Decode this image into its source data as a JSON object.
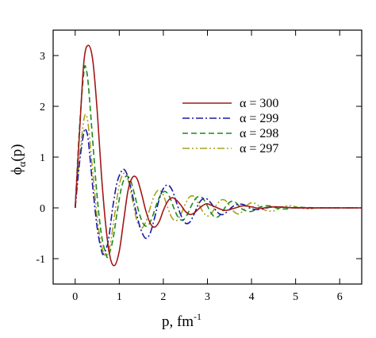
{
  "chart_data": {
    "type": "line",
    "xlabel": "p, fm",
    "xlabel_sup": "-1",
    "ylabel": "ϕ",
    "ylabel_sub": "α",
    "ylabel_arg": "(p)",
    "xlim": [
      -0.5,
      6.5
    ],
    "ylim": [
      -1.5,
      3.5
    ],
    "xticks": [
      0,
      1,
      2,
      3,
      4,
      5,
      6
    ],
    "yticks": [
      -1,
      0,
      1,
      2,
      3
    ],
    "grid": false,
    "legend_position": "center-right",
    "series": [
      {
        "name": "α = 300",
        "color": "#a11818",
        "dash": "solid",
        "points": [
          [
            0,
            0
          ],
          [
            0.1,
            1.5
          ],
          [
            0.2,
            2.9
          ],
          [
            0.3,
            3.2
          ],
          [
            0.4,
            2.9
          ],
          [
            0.5,
            1.9
          ],
          [
            0.6,
            0.6
          ],
          [
            0.7,
            -0.4
          ],
          [
            0.8,
            -1.0
          ],
          [
            0.9,
            -1.13
          ],
          [
            1.0,
            -0.85
          ],
          [
            1.1,
            -0.25
          ],
          [
            1.2,
            0.35
          ],
          [
            1.3,
            0.6
          ],
          [
            1.4,
            0.58
          ],
          [
            1.5,
            0.3
          ],
          [
            1.6,
            -0.05
          ],
          [
            1.7,
            -0.3
          ],
          [
            1.8,
            -0.38
          ],
          [
            1.9,
            -0.28
          ],
          [
            2.0,
            -0.05
          ],
          [
            2.1,
            0.13
          ],
          [
            2.2,
            0.2
          ],
          [
            2.3,
            0.15
          ],
          [
            2.4,
            0.05
          ],
          [
            2.5,
            -0.07
          ],
          [
            2.6,
            -0.13
          ],
          [
            2.7,
            -0.1
          ],
          [
            2.8,
            -0.02
          ],
          [
            2.9,
            0.05
          ],
          [
            3.0,
            0.08
          ],
          [
            3.2,
            0.01
          ],
          [
            3.4,
            -0.05
          ],
          [
            3.6,
            -0.01
          ],
          [
            3.8,
            0.04
          ],
          [
            4.0,
            0.02
          ],
          [
            4.2,
            -0.01
          ],
          [
            4.5,
            0.02
          ],
          [
            5.0,
            0.0
          ],
          [
            5.5,
            0.0
          ],
          [
            6.0,
            0.0
          ],
          [
            6.5,
            0.0
          ]
        ]
      },
      {
        "name": "α = 299",
        "color": "#1a1aa8",
        "dash": "dashdot",
        "points": [
          [
            0,
            0
          ],
          [
            0.1,
            0.9
          ],
          [
            0.2,
            1.5
          ],
          [
            0.25,
            1.52
          ],
          [
            0.3,
            1.3
          ],
          [
            0.4,
            0.4
          ],
          [
            0.5,
            -0.4
          ],
          [
            0.6,
            -0.85
          ],
          [
            0.65,
            -0.9
          ],
          [
            0.75,
            -0.65
          ],
          [
            0.85,
            0.0
          ],
          [
            0.95,
            0.5
          ],
          [
            1.05,
            0.72
          ],
          [
            1.12,
            0.75
          ],
          [
            1.2,
            0.6
          ],
          [
            1.3,
            0.25
          ],
          [
            1.4,
            -0.15
          ],
          [
            1.5,
            -0.45
          ],
          [
            1.6,
            -0.6
          ],
          [
            1.7,
            -0.5
          ],
          [
            1.8,
            -0.2
          ],
          [
            1.9,
            0.15
          ],
          [
            2.0,
            0.38
          ],
          [
            2.1,
            0.45
          ],
          [
            2.2,
            0.35
          ],
          [
            2.3,
            0.1
          ],
          [
            2.4,
            -0.15
          ],
          [
            2.5,
            -0.3
          ],
          [
            2.6,
            -0.28
          ],
          [
            2.7,
            -0.12
          ],
          [
            2.8,
            0.08
          ],
          [
            2.9,
            0.18
          ],
          [
            3.0,
            0.17
          ],
          [
            3.1,
            0.07
          ],
          [
            3.2,
            -0.06
          ],
          [
            3.3,
            -0.13
          ],
          [
            3.4,
            -0.11
          ],
          [
            3.6,
            0.04
          ],
          [
            3.8,
            0.07
          ],
          [
            4.0,
            -0.02
          ],
          [
            4.2,
            -0.03
          ],
          [
            4.5,
            0.02
          ],
          [
            5.0,
            0.0
          ],
          [
            5.5,
            0.0
          ],
          [
            6.0,
            0.0
          ],
          [
            6.5,
            0.0
          ]
        ]
      },
      {
        "name": "α = 298",
        "color": "#1a8a1a",
        "dash": "dashed",
        "points": [
          [
            0,
            0
          ],
          [
            0.1,
            1.6
          ],
          [
            0.2,
            2.7
          ],
          [
            0.25,
            2.72
          ],
          [
            0.3,
            2.4
          ],
          [
            0.4,
            1.3
          ],
          [
            0.5,
            0.2
          ],
          [
            0.6,
            -0.55
          ],
          [
            0.7,
            -0.92
          ],
          [
            0.75,
            -0.95
          ],
          [
            0.85,
            -0.65
          ],
          [
            0.95,
            -0.1
          ],
          [
            1.05,
            0.4
          ],
          [
            1.15,
            0.62
          ],
          [
            1.25,
            0.55
          ],
          [
            1.35,
            0.25
          ],
          [
            1.45,
            -0.1
          ],
          [
            1.55,
            -0.32
          ],
          [
            1.65,
            -0.35
          ],
          [
            1.75,
            -0.18
          ],
          [
            1.85,
            0.08
          ],
          [
            1.95,
            0.27
          ],
          [
            2.05,
            0.32
          ],
          [
            2.15,
            0.2
          ],
          [
            2.25,
            -0.03
          ],
          [
            2.35,
            -0.2
          ],
          [
            2.45,
            -0.24
          ],
          [
            2.55,
            -0.12
          ],
          [
            2.65,
            0.07
          ],
          [
            2.75,
            0.2
          ],
          [
            2.85,
            0.22
          ],
          [
            2.95,
            0.12
          ],
          [
            3.05,
            -0.05
          ],
          [
            3.15,
            -0.17
          ],
          [
            3.25,
            -0.17
          ],
          [
            3.35,
            -0.06
          ],
          [
            3.45,
            0.07
          ],
          [
            3.55,
            0.13
          ],
          [
            3.65,
            0.1
          ],
          [
            3.8,
            -0.03
          ],
          [
            4.0,
            -0.07
          ],
          [
            4.2,
            0.02
          ],
          [
            4.4,
            0.04
          ],
          [
            4.6,
            -0.01
          ],
          [
            4.8,
            -0.02
          ],
          [
            5.0,
            0.01
          ],
          [
            5.5,
            0.0
          ],
          [
            6.0,
            0.0
          ],
          [
            6.5,
            0.0
          ]
        ]
      },
      {
        "name": "α = 297",
        "color": "#a8a020",
        "dash": "dashdotdot",
        "points": [
          [
            0,
            0
          ],
          [
            0.1,
            1.0
          ],
          [
            0.2,
            1.75
          ],
          [
            0.25,
            1.82
          ],
          [
            0.3,
            1.6
          ],
          [
            0.4,
            0.7
          ],
          [
            0.5,
            -0.2
          ],
          [
            0.6,
            -0.75
          ],
          [
            0.7,
            -0.95
          ],
          [
            0.8,
            -0.7
          ],
          [
            0.9,
            -0.1
          ],
          [
            1.0,
            0.45
          ],
          [
            1.1,
            0.68
          ],
          [
            1.2,
            0.55
          ],
          [
            1.3,
            0.15
          ],
          [
            1.4,
            -0.25
          ],
          [
            1.5,
            -0.4
          ],
          [
            1.6,
            -0.28
          ],
          [
            1.7,
            0.0
          ],
          [
            1.8,
            0.25
          ],
          [
            1.9,
            0.35
          ],
          [
            2.0,
            0.25
          ],
          [
            2.1,
            0.0
          ],
          [
            2.2,
            -0.2
          ],
          [
            2.3,
            -0.25
          ],
          [
            2.4,
            -0.12
          ],
          [
            2.5,
            0.08
          ],
          [
            2.6,
            0.22
          ],
          [
            2.7,
            0.22
          ],
          [
            2.8,
            0.08
          ],
          [
            2.9,
            -0.08
          ],
          [
            3.0,
            -0.16
          ],
          [
            3.1,
            -0.1
          ],
          [
            3.2,
            0.05
          ],
          [
            3.3,
            0.15
          ],
          [
            3.4,
            0.15
          ],
          [
            3.5,
            0.05
          ],
          [
            3.6,
            -0.07
          ],
          [
            3.7,
            -0.12
          ],
          [
            3.8,
            -0.06
          ],
          [
            3.9,
            0.05
          ],
          [
            4.0,
            0.1
          ],
          [
            4.1,
            0.08
          ],
          [
            4.3,
            -0.04
          ],
          [
            4.5,
            -0.06
          ],
          [
            4.7,
            0.02
          ],
          [
            4.9,
            0.04
          ],
          [
            5.1,
            0.0
          ],
          [
            5.3,
            -0.02
          ],
          [
            5.5,
            0.0
          ],
          [
            6.0,
            0.0
          ],
          [
            6.5,
            0.0
          ]
        ]
      }
    ]
  }
}
